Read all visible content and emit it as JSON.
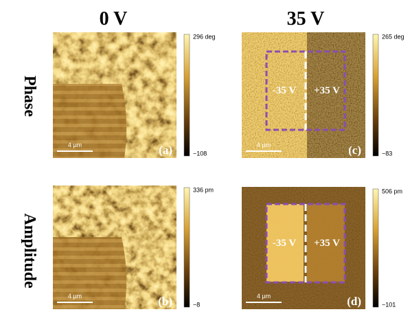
{
  "columns": [
    "0 V",
    "35 V"
  ],
  "rows": [
    "Phase",
    "Amplitude"
  ],
  "panels": [
    {
      "label": "(a)",
      "scale_bar": "4 µm",
      "colorbar_max": "296 deg",
      "colorbar_min": "−108"
    },
    {
      "label": "(b)",
      "scale_bar": "4 µm",
      "colorbar_max": "336 pm",
      "colorbar_min": "−8"
    },
    {
      "label": "(c)",
      "scale_bar": "4 µm",
      "colorbar_max": "265 deg",
      "colorbar_min": "−83",
      "annotations": [
        "-35 V",
        "+35 V"
      ]
    },
    {
      "label": "(d)",
      "scale_bar": "4 µm",
      "colorbar_max": "506 pm",
      "colorbar_min": "−101",
      "annotations": [
        "-35 V",
        "+35 V"
      ]
    }
  ]
}
